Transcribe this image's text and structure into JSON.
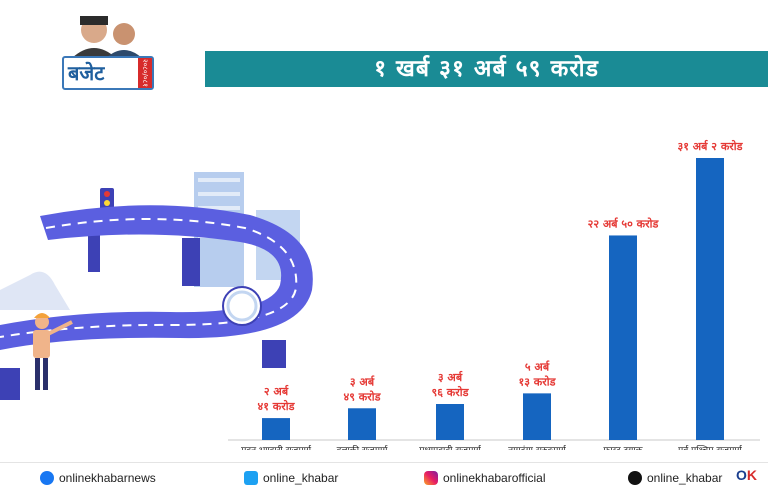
{
  "logo": {
    "word": "बजेट",
    "tag": "२०८०/०८१"
  },
  "headline": "१ खर्ब ३१ अर्ब ५९ करोड",
  "chart_data": {
    "type": "bar",
    "title": "",
    "xlabel": "",
    "ylabel": "",
    "categories": [
      "मदन भण्डारी राजमार्ग",
      "हुलाकी राजमार्ग",
      "मध्यपहाडी राजमार्ग",
      "नागढुंगा सुरुङमार्ग",
      "फास्ट ट्र्याक",
      "पूर्व पश्चिम राजमार्ग"
    ],
    "values": [
      2.41,
      3.49,
      3.96,
      5.13,
      22.5,
      31.02
    ],
    "value_unit": "अर्ब",
    "data_labels": [
      [
        "२ अर्ब",
        "४१ करोड"
      ],
      [
        "३ अर्ब",
        "४९ करोड"
      ],
      [
        "३ अर्ब",
        "९६ करोड"
      ],
      [
        "५ अर्ब",
        "१३ करोड"
      ],
      [
        "२२ अर्ब ५० करोड"
      ],
      [
        "३१ अर्ब २ करोड"
      ]
    ],
    "ylim": [
      0,
      33
    ],
    "grid": false,
    "legend": "none",
    "bar_color": "#1565c0",
    "label_color": "#e53935"
  },
  "footer": {
    "facebook": "onlinekhabarnews",
    "twitter": "online_khabar",
    "instagram": "onlinekhabarofficial",
    "tiktok": "online_khabar"
  },
  "colors": {
    "headline_bar": "#1a8b95",
    "road": "#5b5fe0",
    "building": "#a9c4ea"
  }
}
